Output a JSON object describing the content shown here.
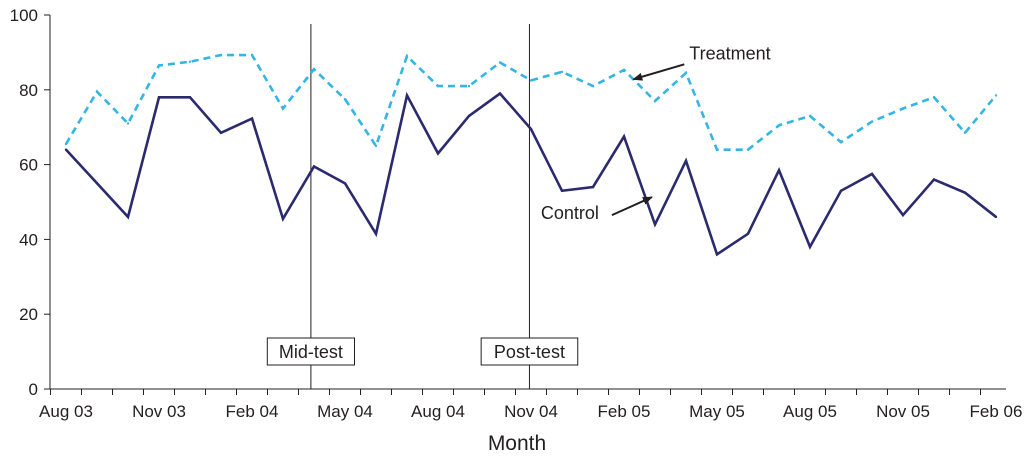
{
  "chart_data": {
    "type": "line",
    "title": "",
    "xlabel": "Month",
    "ylabel": "",
    "ylim": [
      0,
      100
    ],
    "yticks": [
      0,
      20,
      40,
      60,
      80,
      100
    ],
    "x_tick_labels": [
      "Aug 03",
      "Nov 03",
      "Feb 04",
      "May 04",
      "Aug 04",
      "Nov 04",
      "Feb 05",
      "May 05",
      "Aug 05",
      "Nov 05",
      "Feb 06"
    ],
    "x_tick_months": [
      0,
      3,
      6,
      9,
      12,
      15,
      18,
      21,
      24,
      27,
      30
    ],
    "x": [
      0,
      1,
      2,
      3,
      4,
      5,
      6,
      7,
      8,
      9,
      10,
      11,
      12,
      13,
      14,
      15,
      16,
      17,
      18,
      19,
      20,
      21,
      22,
      23,
      24,
      25,
      26,
      27,
      28,
      29,
      30
    ],
    "series": [
      {
        "name": "Treatment",
        "style": "dashed",
        "color": "#33b5e5",
        "values": [
          65.5,
          79.5,
          71,
          86.5,
          87.5,
          89.3,
          89.3,
          75,
          85.5,
          77.5,
          65,
          89,
          81,
          81,
          87.3,
          82.5,
          84.8,
          81,
          85.3,
          77,
          84.5,
          64,
          64,
          70.5,
          73,
          66,
          71.5,
          75,
          78,
          68.5,
          78.5
        ]
      },
      {
        "name": "Control",
        "style": "solid",
        "color": "#2b2a6e",
        "values": [
          64,
          55,
          46,
          78,
          78,
          68.5,
          72.3,
          45.5,
          59.5,
          55,
          41.5,
          78.5,
          63,
          73,
          79,
          69.5,
          53,
          54,
          67.5,
          44,
          61,
          36,
          41.5,
          58.5,
          38,
          53,
          57.5,
          46.5,
          56,
          52.5,
          46
        ]
      }
    ],
    "vertical_lines": [
      {
        "label": "Mid-test",
        "month": 7.9
      },
      {
        "label": "Post-test",
        "month": 14.95
      }
    ],
    "annotations": [
      {
        "text": "Treatment",
        "series": "Treatment",
        "month": 18.3,
        "value": 82.8
      },
      {
        "text": "Control",
        "series": "Control",
        "month": 18.9,
        "value": 51.3
      }
    ],
    "grid": false,
    "legend": "none"
  }
}
